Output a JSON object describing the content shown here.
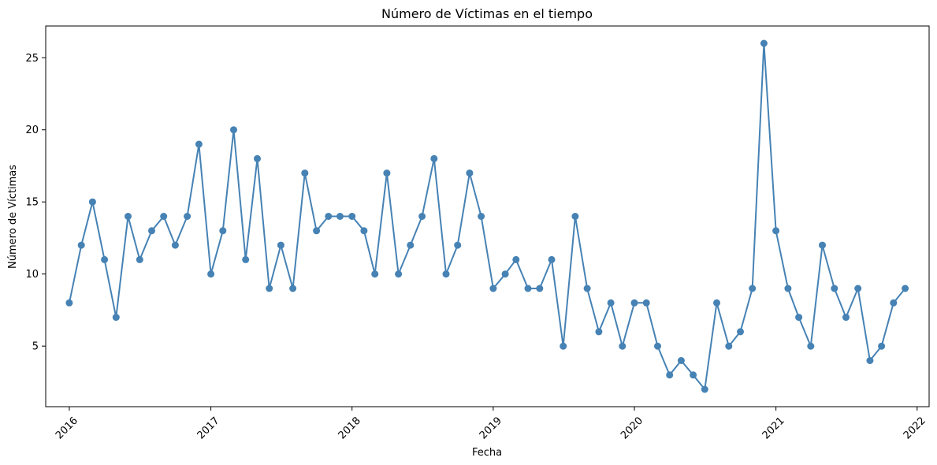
{
  "chart_data": {
    "type": "line",
    "title": "Número de Víctimas en el tiempo",
    "xlabel": "Fecha",
    "ylabel": "Número de Víctimas",
    "x_ticks": [
      "2016",
      "2017",
      "2018",
      "2019",
      "2020",
      "2021",
      "2022"
    ],
    "y_ticks": [
      5,
      10,
      15,
      20,
      25
    ],
    "xlim": [
      "2015-11-01",
      "2022-02-01"
    ],
    "ylim": [
      0.8,
      27.2
    ],
    "grid": false,
    "legend": "none",
    "color": "#4682b4",
    "series": [
      {
        "x": [
          "2016-01",
          "2016-02",
          "2016-03",
          "2016-04",
          "2016-05",
          "2016-06",
          "2016-07",
          "2016-08",
          "2016-09",
          "2016-10",
          "2016-11",
          "2016-12",
          "2017-01",
          "2017-02",
          "2017-03",
          "2017-04",
          "2017-05",
          "2017-06",
          "2017-07",
          "2017-08",
          "2017-09",
          "2017-10",
          "2017-11",
          "2017-12",
          "2018-01",
          "2018-02",
          "2018-03",
          "2018-04",
          "2018-05",
          "2018-06",
          "2018-07",
          "2018-08",
          "2018-09",
          "2018-10",
          "2018-11",
          "2018-12",
          "2019-01",
          "2019-02",
          "2019-03",
          "2019-04",
          "2019-05",
          "2019-06",
          "2019-07",
          "2019-08",
          "2019-09",
          "2019-10",
          "2019-11",
          "2019-12",
          "2020-01",
          "2020-02",
          "2020-03",
          "2020-04",
          "2020-05",
          "2020-06",
          "2020-07",
          "2020-08",
          "2020-09",
          "2020-10",
          "2020-11",
          "2020-12",
          "2021-01",
          "2021-02",
          "2021-03",
          "2021-04",
          "2021-05",
          "2021-06",
          "2021-07",
          "2021-08",
          "2021-09",
          "2021-10",
          "2021-11",
          "2021-12"
        ],
        "y": [
          8,
          12,
          15,
          11,
          7,
          14,
          11,
          13,
          14,
          12,
          14,
          19,
          10,
          13,
          20,
          11,
          18,
          9,
          12,
          9,
          17,
          13,
          14,
          14,
          14,
          13,
          10,
          17,
          10,
          12,
          14,
          18,
          10,
          12,
          17,
          14,
          9,
          10,
          11,
          9,
          9,
          11,
          5,
          14,
          9,
          6,
          8,
          5,
          8,
          8,
          5,
          3,
          4,
          3,
          2,
          8,
          5,
          6,
          9,
          26,
          13,
          9,
          7,
          5,
          12,
          9,
          7,
          9,
          4,
          5,
          8,
          9
        ]
      }
    ]
  }
}
